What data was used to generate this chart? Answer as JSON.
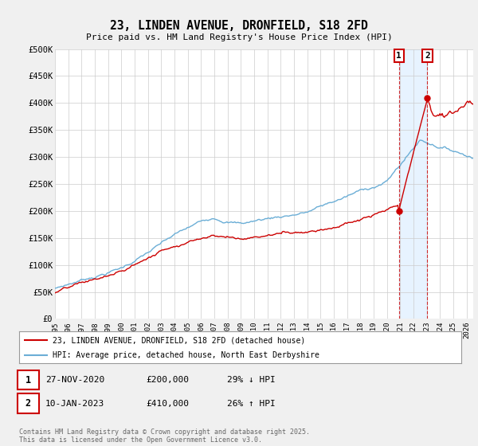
{
  "title": "23, LINDEN AVENUE, DRONFIELD, S18 2FD",
  "subtitle": "Price paid vs. HM Land Registry's House Price Index (HPI)",
  "ylabel_ticks": [
    "£0",
    "£50K",
    "£100K",
    "£150K",
    "£200K",
    "£250K",
    "£300K",
    "£350K",
    "£400K",
    "£450K",
    "£500K"
  ],
  "ytick_values": [
    0,
    50000,
    100000,
    150000,
    200000,
    250000,
    300000,
    350000,
    400000,
    450000,
    500000
  ],
  "xlim_start": 1995.0,
  "xlim_end": 2026.5,
  "ylim": [
    0,
    500000
  ],
  "hpi_color": "#6baed6",
  "price_color": "#cc0000",
  "vline1_x": 2020.9,
  "vline2_x": 2023.05,
  "sale1_year": 2020.9,
  "sale1_price": 200000,
  "sale2_year": 2023.05,
  "sale2_price": 410000,
  "legend_line1": "23, LINDEN AVENUE, DRONFIELD, S18 2FD (detached house)",
  "legend_line2": "HPI: Average price, detached house, North East Derbyshire",
  "table_entries": [
    {
      "num": "1",
      "date": "27-NOV-2020",
      "price": "£200,000",
      "change": "29% ↓ HPI"
    },
    {
      "num": "2",
      "date": "10-JAN-2023",
      "price": "£410,000",
      "change": "26% ↑ HPI"
    }
  ],
  "footnote": "Contains HM Land Registry data © Crown copyright and database right 2025.\nThis data is licensed under the Open Government Licence v3.0.",
  "background_color": "#f0f0f0",
  "plot_bg_color": "#ffffff",
  "shade_color": "#ddeeff"
}
